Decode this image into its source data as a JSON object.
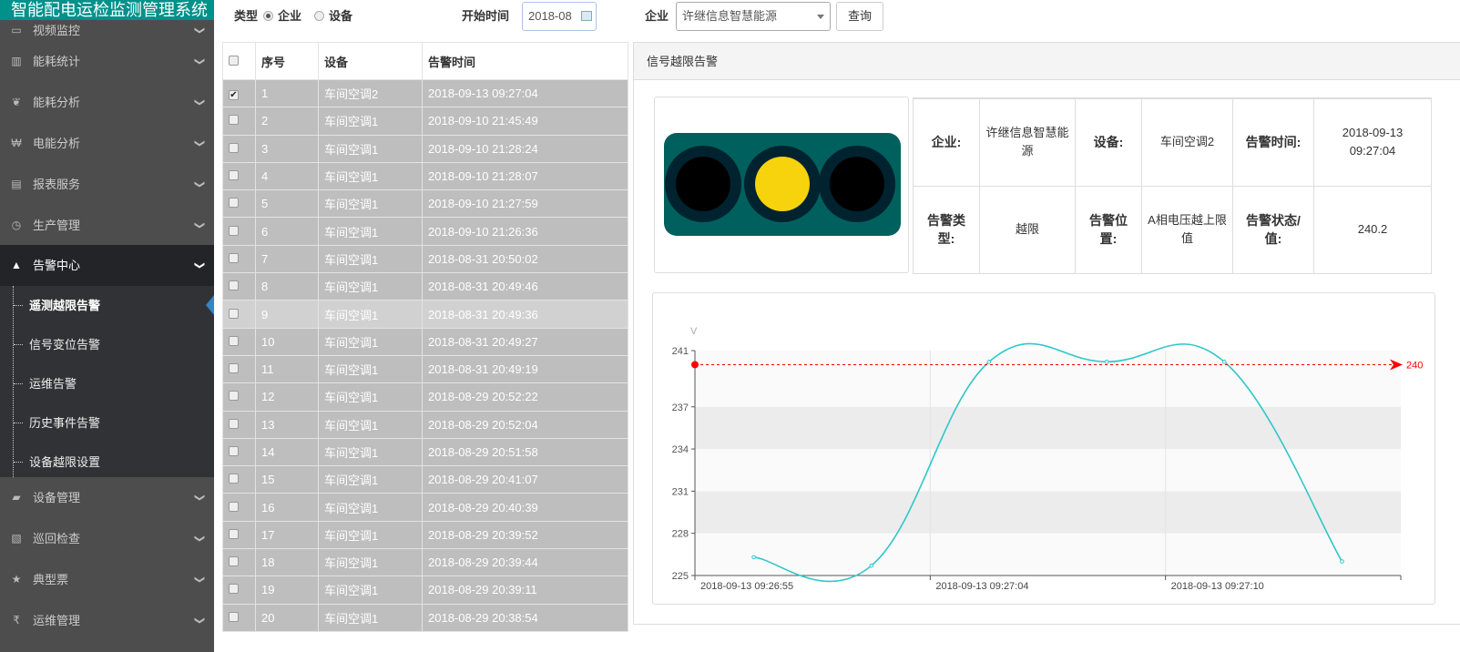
{
  "app": {
    "title": "智能配电运检监测管理系统"
  },
  "sidebar": {
    "items": [
      {
        "label": "视频监控",
        "icon": "film-icon"
      },
      {
        "label": "能耗统计",
        "icon": "bar-chart-icon"
      },
      {
        "label": "能耗分析",
        "icon": "leaf-icon"
      },
      {
        "label": "电能分析",
        "icon": "yen-icon"
      },
      {
        "label": "报表服务",
        "icon": "table-icon"
      },
      {
        "label": "生产管理",
        "icon": "clock-icon"
      },
      {
        "label": "告警中心",
        "icon": "bell-icon"
      },
      {
        "label": "设备管理",
        "icon": "book-icon"
      },
      {
        "label": "巡回检查",
        "icon": "picture-icon"
      },
      {
        "label": "典型票",
        "icon": "star-half-icon"
      },
      {
        "label": "运维管理",
        "icon": "rupee-icon"
      }
    ],
    "submenu": [
      "遥测越限告警",
      "信号变位告警",
      "运维告警",
      "历史事件告警",
      "设备越限设置"
    ]
  },
  "filters": {
    "type_label": "类型",
    "opt_company": "企业",
    "opt_device": "设备",
    "selected": "企业",
    "start_label": "开始时间",
    "start_value": "2018-08",
    "company_label": "企业",
    "company_value": "许继信息智慧能源",
    "query": "查询"
  },
  "table": {
    "headers": [
      "序号",
      "设备",
      "告警时间"
    ],
    "rows": [
      [
        "1",
        "车间空调2",
        "2018-09-13 09:27:04"
      ],
      [
        "2",
        "车间空调1",
        "2018-09-10 21:45:49"
      ],
      [
        "3",
        "车间空调1",
        "2018-09-10 21:28:24"
      ],
      [
        "4",
        "车间空调1",
        "2018-09-10 21:28:07"
      ],
      [
        "5",
        "车间空调1",
        "2018-09-10 21:27:59"
      ],
      [
        "6",
        "车间空调1",
        "2018-09-10 21:26:36"
      ],
      [
        "7",
        "车间空调1",
        "2018-08-31 20:50:02"
      ],
      [
        "8",
        "车间空调1",
        "2018-08-31 20:49:46"
      ],
      [
        "9",
        "车间空调1",
        "2018-08-31 20:49:36"
      ],
      [
        "10",
        "车间空调1",
        "2018-08-31 20:49:27"
      ],
      [
        "11",
        "车间空调1",
        "2018-08-31 20:49:19"
      ],
      [
        "12",
        "车间空调1",
        "2018-08-29 20:52:22"
      ],
      [
        "13",
        "车间空调1",
        "2018-08-29 20:52:04"
      ],
      [
        "14",
        "车间空调1",
        "2018-08-29 20:51:58"
      ],
      [
        "15",
        "车间空调1",
        "2018-08-29 20:41:07"
      ],
      [
        "16",
        "车间空调1",
        "2018-08-29 20:40:39"
      ],
      [
        "17",
        "车间空调1",
        "2018-08-29 20:39:52"
      ],
      [
        "18",
        "车间空调1",
        "2018-08-29 20:39:44"
      ],
      [
        "19",
        "车间空调1",
        "2018-08-29 20:39:11"
      ],
      [
        "20",
        "车间空调1",
        "2018-08-29 20:38:54"
      ]
    ],
    "checked_row": "1"
  },
  "panel": {
    "title": "信号越限告警",
    "light_state": "yellow",
    "info": [
      {
        "k1": "企业:",
        "v1": "许继信息智慧能源",
        "k2": "设备:",
        "v2": "车间空调2",
        "k3": "告警时间:",
        "v3": "2018-09-13 09:27:04"
      },
      {
        "k1": "告警类型:",
        "v1": "越限",
        "k2": "告警位置:",
        "v2": "A相电压越上限值",
        "k3": "告警状态/值:",
        "v3": "240.2"
      }
    ]
  },
  "chart_data": {
    "type": "line",
    "ylabel": "V",
    "ylim": [
      225,
      241
    ],
    "yticks": [
      225,
      228,
      231,
      234,
      237,
      241
    ],
    "categories": [
      "2018-09-13 09:26:55",
      "",
      "2018-09-13 09:27:04",
      "",
      "2018-09-13 09:27:10",
      ""
    ],
    "values": [
      226.3,
      225.7,
      240.2,
      240.2,
      240.2,
      226.0
    ],
    "smooth": true,
    "grid": "horizontal alternating bands",
    "markline": {
      "value": 240,
      "label": "240",
      "color": "#ff0000"
    },
    "line_color": "#2ec7c9"
  }
}
